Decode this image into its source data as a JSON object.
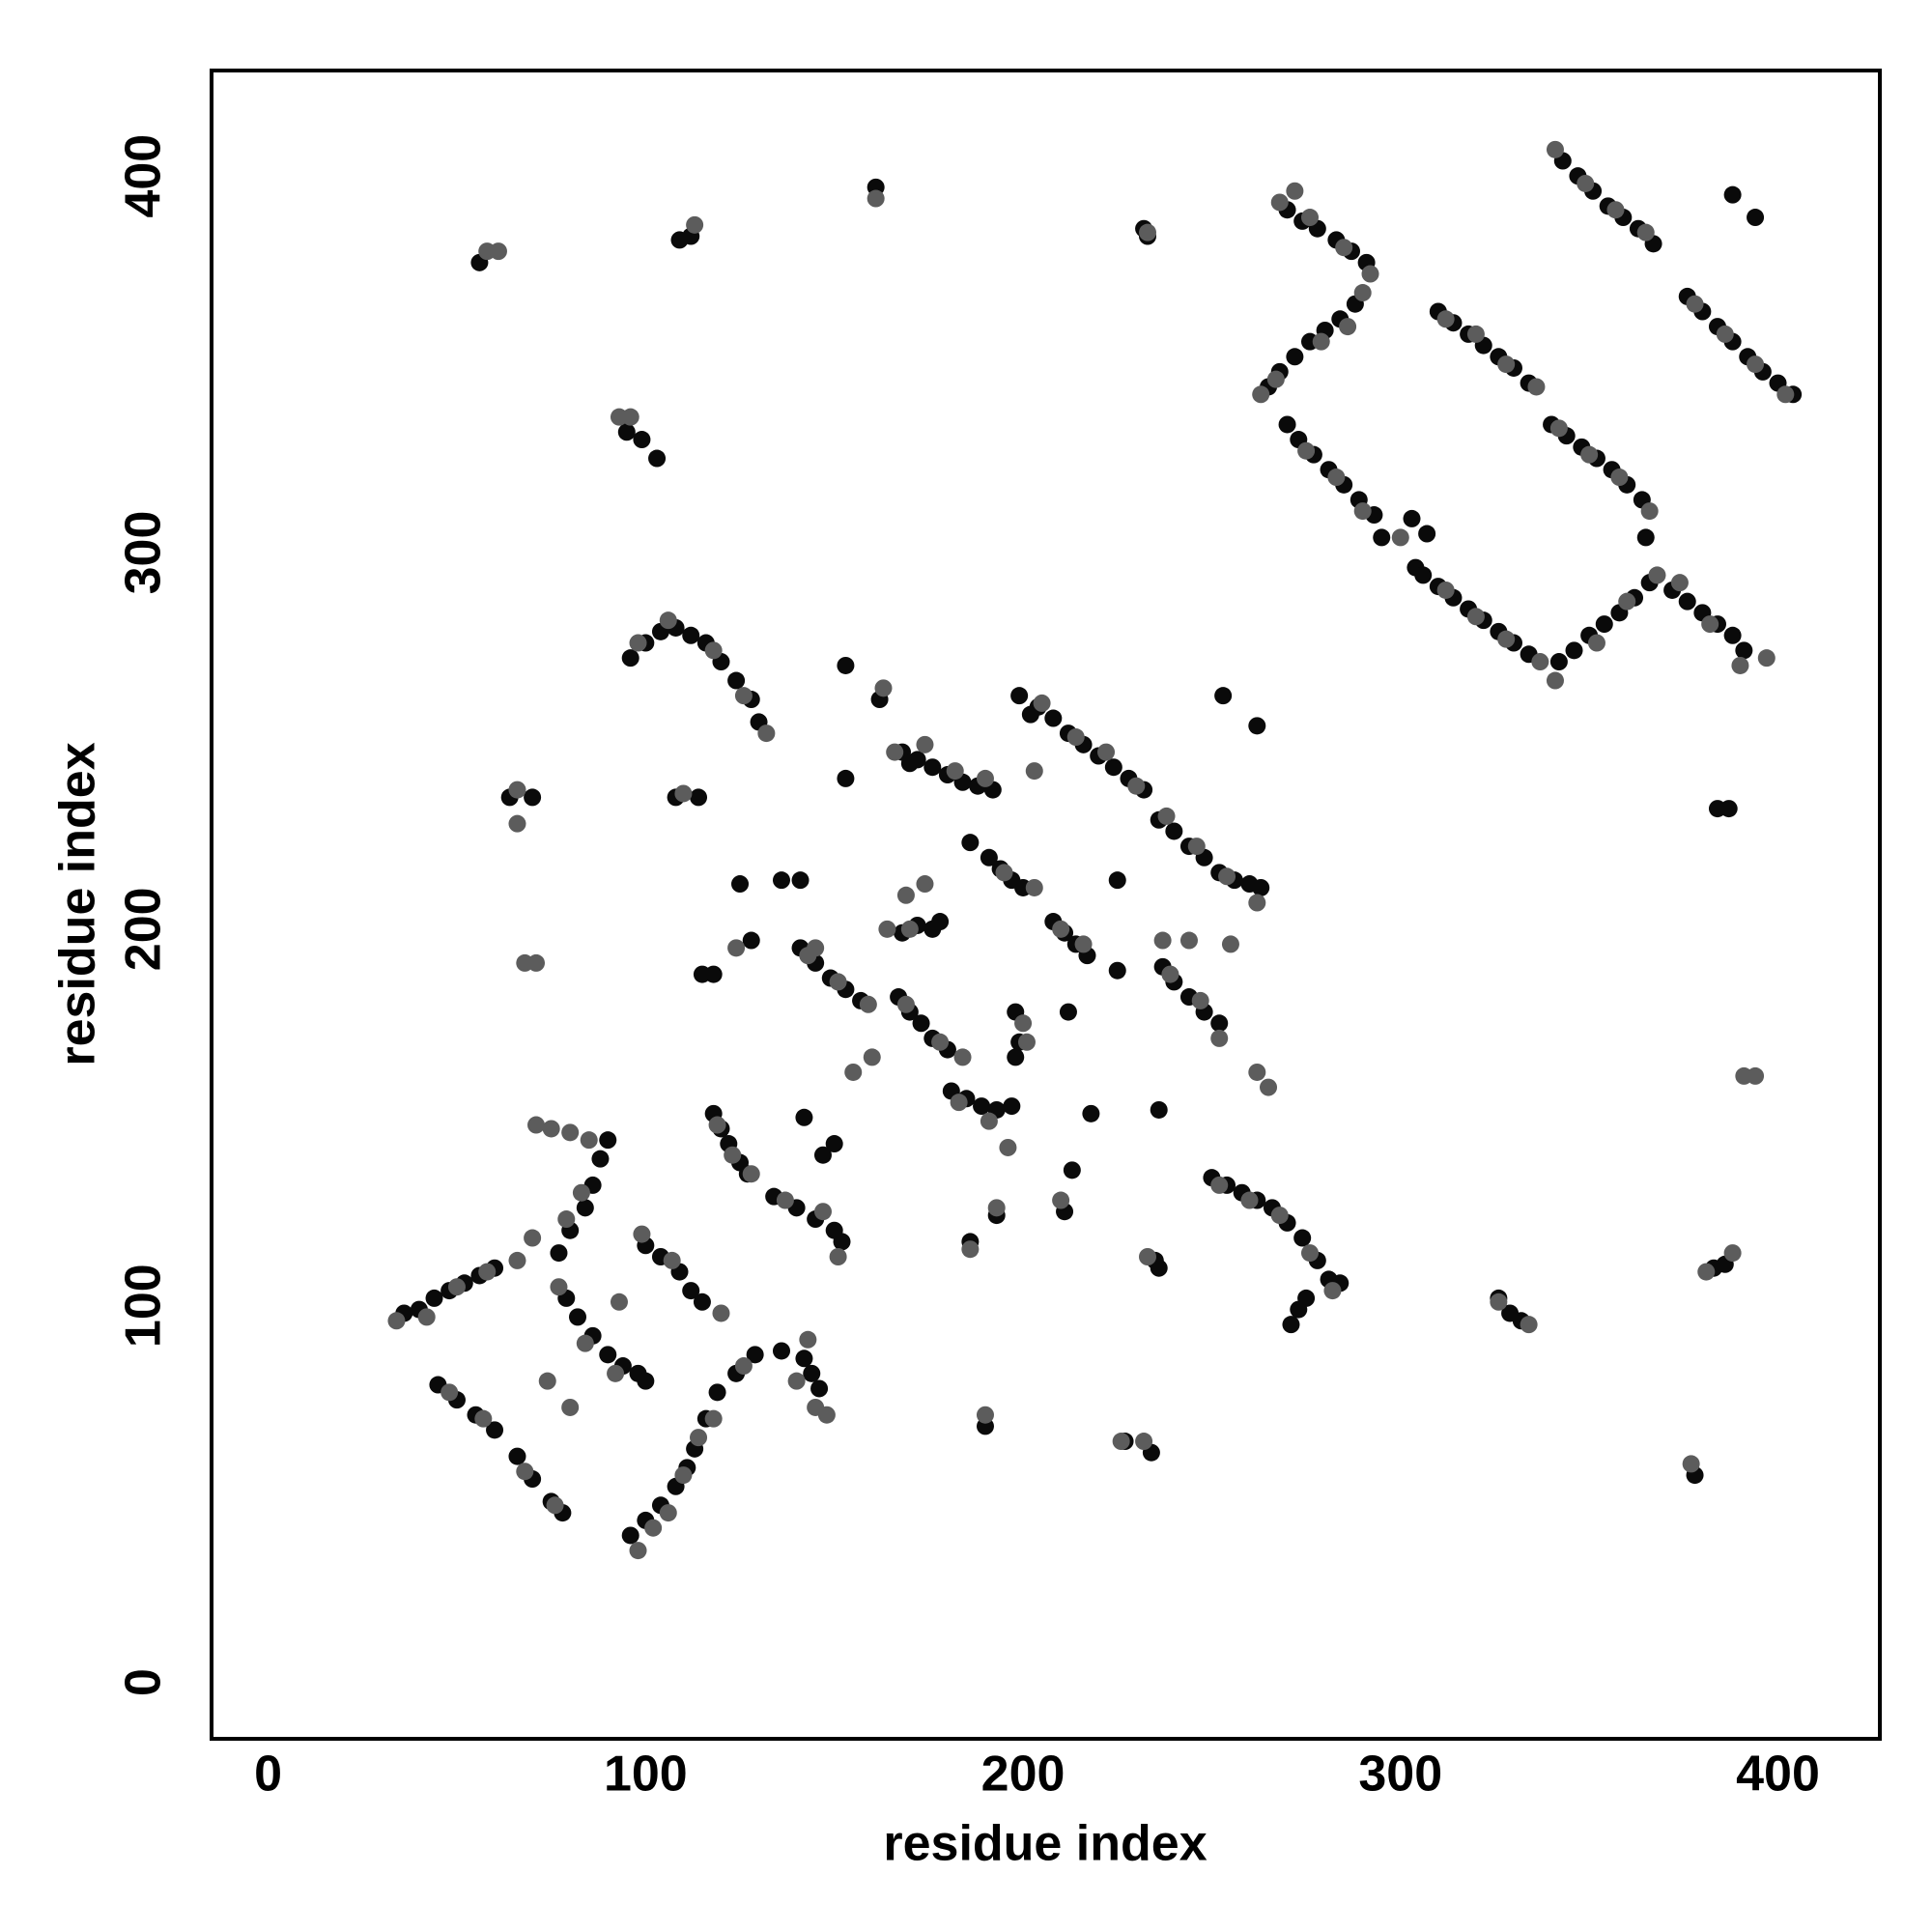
{
  "chart_data": {
    "type": "scatter",
    "xlabel": "residue index",
    "ylabel": "residue index",
    "xlim": [
      -15,
      427
    ],
    "ylim": [
      -15,
      428
    ],
    "xticks": [
      0,
      100,
      200,
      300,
      400
    ],
    "yticks": [
      0,
      100,
      200,
      300,
      400
    ],
    "grid": false,
    "series": [
      {
        "color": "#0a0a0a",
        "x": [
          270,
          274,
          278,
          283,
          287,
          291,
          265,
          268,
          272,
          276,
          280,
          284,
          288,
          270,
          273,
          277,
          281,
          285,
          289,
          293,
          295,
          304,
          303,
          307,
          306,
          310,
          314,
          318,
          322,
          326,
          330,
          334,
          342,
          346,
          350,
          354,
          358,
          362,
          366,
          310,
          314,
          318,
          322,
          326,
          330,
          334,
          340,
          344,
          348,
          352,
          356,
          360,
          364,
          365,
          343,
          347,
          351,
          355,
          359,
          363,
          367,
          376,
          380,
          384,
          388,
          392,
          396,
          400,
          404,
          372,
          376,
          380,
          384,
          388,
          391,
          388,
          394,
          384,
          387,
          383,
          386,
          378,
          329,
          332,
          36,
          40,
          44,
          48,
          52,
          56,
          60,
          45,
          50,
          55,
          60,
          66,
          70,
          75,
          78,
          90,
          88,
          86,
          84,
          80,
          77,
          79,
          82,
          86,
          90,
          94,
          98,
          100,
          96,
          100,
          104,
          108,
          111,
          113,
          116,
          119,
          124,
          129,
          100,
          104,
          109,
          112,
          115,
          136,
          142,
          144,
          146,
          96,
          100,
          104,
          108,
          112,
          116,
          120,
          124,
          128,
          130,
          64,
          70,
          108,
          114,
          115,
          118,
          56,
          109,
          112,
          161,
          232,
          233,
          95,
          99,
          103,
          168,
          172,
          176,
          180,
          184,
          188,
          192,
          199,
          204,
          208,
          212,
          216,
          220,
          224,
          228,
          232,
          236,
          240,
          244,
          248,
          252,
          256,
          260,
          263,
          191,
          194,
          197,
          200,
          208,
          211,
          214,
          217,
          225,
          141,
          145,
          149,
          153,
          157,
          168,
          172,
          176,
          167,
          170,
          173,
          176,
          180,
          181,
          185,
          189,
          193,
          197,
          199,
          198,
          237,
          240,
          244,
          248,
          252,
          250,
          254,
          258,
          262,
          266,
          270,
          274,
          278,
          281,
          284,
          271,
          273,
          275,
          118,
          120,
          122,
          125,
          127,
          134,
          140,
          145,
          150,
          152,
          142,
          147,
          150,
          227,
          234,
          235,
          190,
          186,
          193,
          211,
          213,
          236,
          326,
          153,
          170,
          186,
          178,
          198,
          212,
          218,
          236,
          202,
          253,
          262,
          225,
          125,
          136,
          141,
          153,
          162,
          128
        ],
        "y": [
          391,
          388,
          386,
          383,
          380,
          377,
          344,
          348,
          352,
          356,
          359,
          362,
          366,
          334,
          330,
          326,
          322,
          318,
          314,
          310,
          304,
          296,
          309,
          305,
          294,
          291,
          288,
          285,
          282,
          279,
          276,
          273,
          271,
          274,
          278,
          281,
          284,
          288,
          292,
          364,
          361,
          358,
          355,
          352,
          349,
          345,
          334,
          331,
          328,
          325,
          322,
          318,
          314,
          304,
          404,
          400,
          396,
          392,
          389,
          386,
          382,
          368,
          364,
          360,
          356,
          352,
          348,
          345,
          342,
          290,
          287,
          284,
          281,
          278,
          274,
          395,
          389,
          232,
          232,
          110,
          111,
          55,
          98,
          96,
          98,
          99,
          102,
          104,
          106,
          108,
          110,
          79,
          75,
          71,
          67,
          60,
          54,
          48,
          45,
          144,
          139,
          132,
          126,
          120,
          114,
          102,
          97,
          92,
          87,
          84,
          82,
          80,
          39,
          43,
          47,
          52,
          57,
          62,
          70,
          77,
          82,
          87,
          116,
          113,
          109,
          104,
          101,
          88,
          86,
          82,
          78,
          272,
          276,
          279,
          280,
          278,
          276,
          271,
          266,
          261,
          255,
          235,
          235,
          235,
          235,
          188,
          188,
          377,
          383,
          384,
          397,
          386,
          384,
          332,
          330,
          325,
          247,
          245,
          243,
          241,
          239,
          238,
          237,
          262,
          259,
          256,
          252,
          249,
          246,
          243,
          240,
          237,
          229,
          226,
          222,
          219,
          215,
          213,
          212,
          211,
          219,
          216,
          213,
          211,
          202,
          199,
          196,
          193,
          189,
          195,
          191,
          187,
          184,
          181,
          199,
          201,
          200,
          182,
          178,
          175,
          171,
          168,
          157,
          155,
          153,
          152,
          153,
          170,
          166,
          190,
          186,
          182,
          178,
          175,
          134,
          132,
          130,
          128,
          126,
          122,
          118,
          112,
          107,
          106,
          95,
          99,
          102,
          151,
          147,
          143,
          138,
          135,
          129,
          126,
          123,
          120,
          117,
          150,
          140,
          143,
          64,
          61,
          112,
          68,
          117,
          124,
          125,
          136,
          110,
          102,
          240,
          244,
          223,
          202,
          178,
          178,
          151,
          152,
          257,
          262,
          254,
          213,
          212,
          213,
          213,
          270,
          261,
          197
        ]
      },
      {
        "color": "#5c5c5c",
        "x": [
          268,
          272,
          276,
          285,
          292,
          290,
          263,
          267,
          279,
          286,
          275,
          283,
          290,
          300,
          312,
          320,
          328,
          337,
          341,
          352,
          360,
          368,
          312,
          320,
          328,
          336,
          342,
          350,
          358,
          366,
          341,
          349,
          357,
          365,
          378,
          386,
          394,
          402,
          374,
          382,
          390,
          397,
          391,
          394,
          381,
          388,
          377,
          326,
          334,
          34,
          42,
          50,
          58,
          66,
          48,
          57,
          68,
          76,
          71,
          75,
          80,
          85,
          83,
          79,
          70,
          77,
          84,
          92,
          74,
          80,
          93,
          98,
          102,
          106,
          110,
          114,
          118,
          126,
          120,
          99,
          107,
          140,
          145,
          148,
          143,
          98,
          106,
          118,
          126,
          132,
          66,
          66,
          110,
          68,
          71,
          58,
          61,
          113,
          161,
          233,
          93,
          96,
          166,
          174,
          182,
          190,
          205,
          214,
          222,
          230,
          238,
          246,
          254,
          262,
          195,
          203,
          210,
          216,
          143,
          151,
          159,
          164,
          170,
          169,
          178,
          184,
          183,
          191,
          196,
          200,
          201,
          239,
          247,
          252,
          255,
          252,
          260,
          268,
          276,
          282,
          119,
          123,
          128,
          137,
          147,
          151,
          226,
          232,
          233,
          190,
          186,
          193,
          210,
          163,
          155,
          160,
          203,
          237,
          262,
          265,
          244,
          145,
          169,
          174,
          124
        ],
        "y": [
          393,
          396,
          389,
          381,
          374,
          369,
          342,
          346,
          356,
          360,
          327,
          320,
          311,
          304,
          290,
          283,
          277,
          271,
          266,
          276,
          287,
          294,
          362,
          358,
          350,
          344,
          333,
          326,
          320,
          311,
          407,
          398,
          391,
          385,
          366,
          358,
          350,
          342,
          292,
          281,
          270,
          272,
          161,
          161,
          109,
          114,
          58,
          101,
          95,
          96,
          97,
          105,
          109,
          112,
          77,
          70,
          56,
          47,
          148,
          147,
          146,
          144,
          130,
          123,
          118,
          105,
          90,
          82,
          80,
          73,
          101,
          35,
          41,
          45,
          55,
          65,
          70,
          84,
          98,
          119,
          112,
          80,
          73,
          71,
          91,
          276,
          282,
          274,
          262,
          252,
          237,
          228,
          236,
          191,
          191,
          380,
          380,
          387,
          394,
          385,
          336,
          336,
          247,
          249,
          242,
          240,
          260,
          251,
          247,
          238,
          230,
          222,
          214,
          207,
          215,
          211,
          200,
          196,
          193,
          186,
          180,
          200,
          200,
          180,
          170,
          166,
          154,
          149,
          142,
          175,
          170,
          188,
          181,
          171,
          196,
          132,
          128,
          124,
          114,
          104,
          148,
          140,
          135,
          128,
          125,
          113,
          64,
          64,
          113,
          71,
          115,
          126,
          128,
          264,
          162,
          166,
          242,
          197,
          162,
          158,
          197,
          195,
          209,
          212,
          195
        ]
      }
    ]
  }
}
